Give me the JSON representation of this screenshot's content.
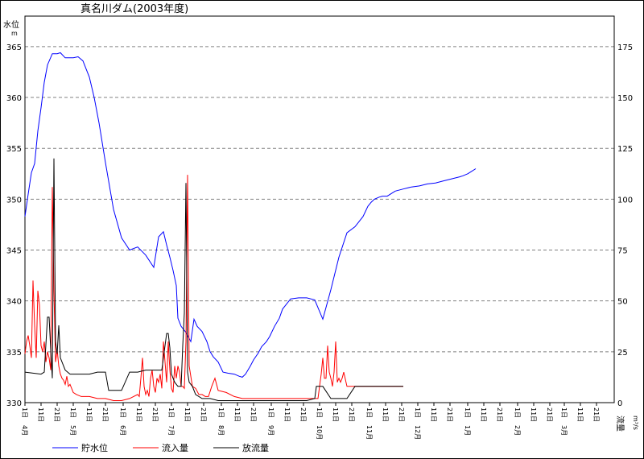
{
  "chart_data": {
    "type": "line",
    "title": "真名川ダム(2003年度)",
    "y_left_label": "水位",
    "y_left_unit": "m",
    "y_right_label": "流量",
    "y_right_unit": "m³/s",
    "y_left_lim": [
      330,
      368
    ],
    "y_right_lim": [
      0,
      190
    ],
    "y_left_ticks": [
      "330",
      "335",
      "340",
      "345",
      "350",
      "355",
      "360",
      "365"
    ],
    "y_right_ticks": [
      "0",
      "25",
      "50",
      "75",
      "100",
      "125",
      "150",
      "175"
    ],
    "x_day_labels": [
      "1日",
      "11日",
      "21日"
    ],
    "x_months": [
      "4月",
      "5月",
      "6月",
      "7月",
      "8月",
      "9月",
      "10月",
      "11月",
      "12月",
      "1月",
      "2月",
      "3月"
    ],
    "month_lengths": [
      30,
      31,
      30,
      31,
      31,
      30,
      31,
      30,
      31,
      31,
      29,
      31
    ],
    "grid": true,
    "legend_position": "bottom",
    "series": [
      {
        "name": "貯水位",
        "color": "#0000ff",
        "axis": "left",
        "x": [
          0,
          2,
          4,
          6,
          8,
          10,
          12,
          14,
          17,
          20,
          22,
          25,
          30,
          33,
          36,
          40,
          43,
          46,
          50,
          55,
          60,
          65,
          70,
          75,
          80,
          83,
          86,
          88,
          90,
          92,
          94,
          95,
          97,
          100,
          103,
          105,
          107,
          110,
          113,
          115,
          117,
          120,
          123,
          126,
          130,
          133,
          135,
          137,
          140,
          142,
          145,
          147,
          150,
          152,
          155,
          158,
          160,
          165,
          170,
          175,
          180,
          185,
          190,
          195,
          200,
          205,
          210,
          213,
          215,
          217,
          220,
          222,
          225,
          228,
          230,
          235,
          240,
          245,
          250,
          255,
          260,
          265,
          270,
          272,
          275,
          277,
          280
        ],
        "values": [
          348.3,
          350.5,
          352.6,
          353.5,
          356.7,
          359,
          361.5,
          363.2,
          364.3,
          364.3,
          364.4,
          363.9,
          363.9,
          364,
          363.6,
          362,
          360,
          357.5,
          353.6,
          349,
          346.2,
          345,
          345.3,
          344.5,
          343.3,
          346.3,
          346.8,
          345.5,
          344.3,
          343,
          341.5,
          338.3,
          337.5,
          336.9,
          336,
          338.2,
          337.5,
          337,
          336,
          335,
          334.5,
          334,
          333,
          332.9,
          332.8,
          332.6,
          332.5,
          332.8,
          333.6,
          334.2,
          334.9,
          335.5,
          336,
          336.5,
          337.5,
          338.3,
          339.2,
          340.2,
          340.3,
          340.3,
          340.1,
          338.2,
          341.1,
          344.3,
          346.7,
          347.3,
          348.3,
          349.3,
          349.7,
          350,
          350.2,
          350.3,
          350.3,
          350.6,
          350.8,
          351,
          351.2,
          351.3,
          351.5,
          351.6,
          351.8,
          352,
          352.2,
          352.3,
          352.5,
          352.7,
          353
        ]
      },
      {
        "name": "流入量",
        "color": "#ff0000",
        "axis": "right",
        "x": [
          0,
          1,
          2,
          3,
          4,
          5,
          6,
          7,
          8,
          9,
          10,
          11,
          12,
          13,
          14,
          15,
          16,
          17,
          18,
          19,
          20,
          21,
          22,
          23,
          24,
          25,
          26,
          27,
          28,
          30,
          32,
          35,
          40,
          45,
          50,
          55,
          60,
          65,
          70,
          71,
          72,
          73,
          74,
          75,
          76,
          77,
          78,
          79,
          80,
          81,
          82,
          83,
          84,
          85,
          86,
          87,
          88,
          89,
          90,
          91,
          92,
          93,
          94,
          95,
          96,
          97,
          98,
          99,
          100,
          101,
          102,
          104,
          106,
          108,
          110,
          112,
          114,
          116,
          118,
          120,
          125,
          130,
          135,
          140,
          145,
          150,
          155,
          160,
          165,
          170,
          175,
          180,
          182,
          184,
          185,
          186,
          187,
          188,
          189,
          190,
          191,
          192,
          193,
          194,
          195,
          196,
          197,
          198,
          200,
          202,
          205,
          210,
          215,
          220,
          225,
          230,
          235
        ],
        "values": [
          24,
          30,
          33,
          28,
          22,
          60,
          38,
          22,
          55,
          48,
          28,
          25,
          30,
          20,
          25,
          22,
          16,
          106,
          55,
          20,
          26,
          18,
          14,
          12,
          11,
          9,
          13,
          8,
          9,
          5,
          4,
          3,
          3,
          2,
          2,
          1,
          1,
          2,
          4,
          3,
          12,
          22,
          8,
          4,
          6,
          3,
          12,
          16,
          8,
          5,
          12,
          10,
          14,
          7,
          30,
          20,
          10,
          30,
          16,
          7,
          5,
          18,
          12,
          18,
          15,
          8,
          8,
          7,
          30,
          112,
          18,
          8,
          7,
          4,
          4,
          3,
          3,
          8,
          12,
          6,
          5,
          3,
          2,
          2,
          2,
          2,
          2,
          2,
          2,
          2,
          2,
          2,
          2,
          14,
          22,
          12,
          12,
          28,
          15,
          12,
          8,
          15,
          30,
          10,
          12,
          10,
          12,
          15,
          8,
          8,
          8,
          8,
          8,
          8,
          8,
          8,
          8
        ]
      },
      {
        "name": "放流量",
        "color": "#000000",
        "axis": "right",
        "x": [
          0,
          10,
          12,
          14,
          15,
          16,
          17,
          18,
          19,
          20,
          21,
          22,
          25,
          28,
          30,
          35,
          40,
          45,
          50,
          52,
          55,
          60,
          65,
          70,
          75,
          80,
          85,
          88,
          89,
          90,
          91,
          92,
          93,
          95,
          97,
          98,
          99,
          100,
          101,
          102,
          104,
          106,
          110,
          115,
          120,
          125,
          130,
          135,
          140,
          145,
          150,
          155,
          160,
          165,
          170,
          175,
          180,
          181,
          182,
          185,
          190,
          195,
          200,
          205,
          210,
          215,
          220,
          225,
          230,
          235
        ],
        "values": [
          15,
          14,
          15,
          42,
          42,
          26,
          12,
          120,
          30,
          24,
          38,
          22,
          16,
          14,
          14,
          14,
          14,
          15,
          15,
          6,
          6,
          6,
          15,
          15,
          16,
          16,
          16,
          34,
          34,
          27,
          14,
          12,
          10,
          8,
          8,
          28,
          44,
          108,
          15,
          10,
          8,
          4,
          2,
          2,
          1,
          1,
          1,
          1,
          1,
          1,
          1,
          1,
          1,
          1,
          1,
          1,
          2,
          8,
          8,
          8,
          2,
          2,
          2,
          8,
          8,
          8,
          8,
          8,
          8,
          8
        ]
      }
    ]
  }
}
